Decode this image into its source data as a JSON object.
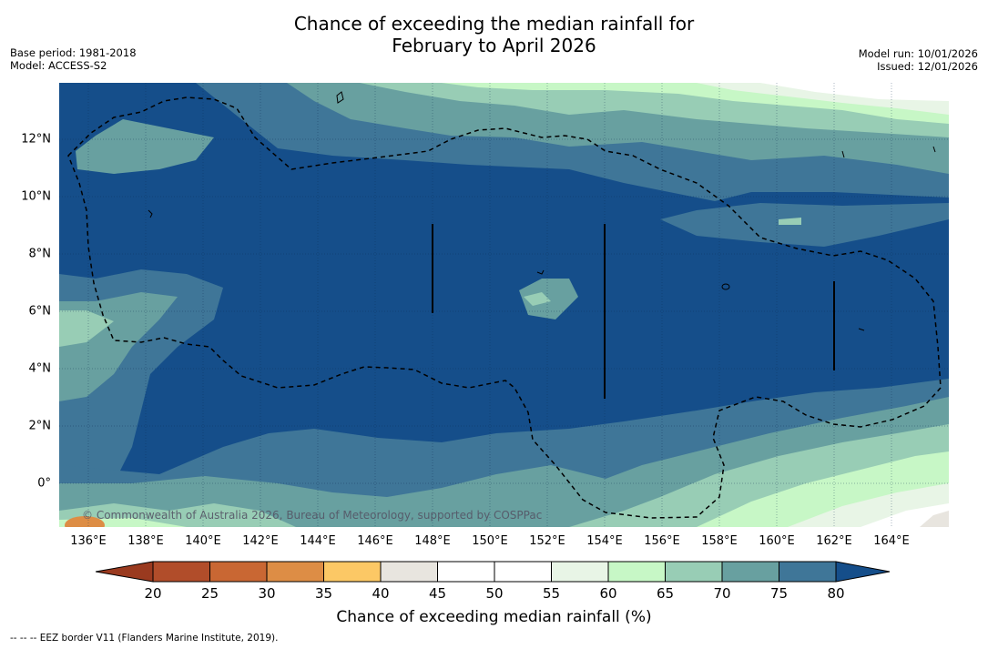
{
  "title": {
    "line1": "Chance of exceeding the median rainfall for",
    "line2": "February to April 2026"
  },
  "meta_left": {
    "base_period": "Base period: 1981-2018",
    "model": "Model: ACCESS-S2"
  },
  "meta_right": {
    "model_run": "Model run: 10/01/2026",
    "issued": "Issued: 12/01/2026"
  },
  "map": {
    "lon_labels": [
      "136°E",
      "138°E",
      "140°E",
      "142°E",
      "144°E",
      "146°E",
      "148°E",
      "150°E",
      "152°E",
      "154°E",
      "156°E",
      "158°E",
      "160°E",
      "162°E",
      "164°E"
    ],
    "lat_labels": [
      "12°N",
      "10°N",
      "8°N",
      "6°N",
      "4°N",
      "2°N",
      "0°"
    ],
    "credit": "© Commonwealth of Australia 2026, Bureau of Meteorology, supported by COSPPac"
  },
  "legend": {
    "ticks": [
      "20",
      "25",
      "30",
      "35",
      "40",
      "45",
      "50",
      "55",
      "60",
      "65",
      "70",
      "75",
      "80"
    ],
    "label": "Chance of exceeding median rainfall (%)",
    "colors": [
      "#9a3a1f",
      "#b14d2a",
      "#c96733",
      "#dd8d45",
      "#fcc865",
      "#e8e5df",
      "#ffffff",
      "#ffffff",
      "#e8f5e6",
      "#c7f7c6",
      "#98cdb5",
      "#68a0a0",
      "#3f7698",
      "#154e8a"
    ]
  },
  "footnote": "--  --  -- EEZ border V11 (Flanders Marine Institute, 2019)."
}
